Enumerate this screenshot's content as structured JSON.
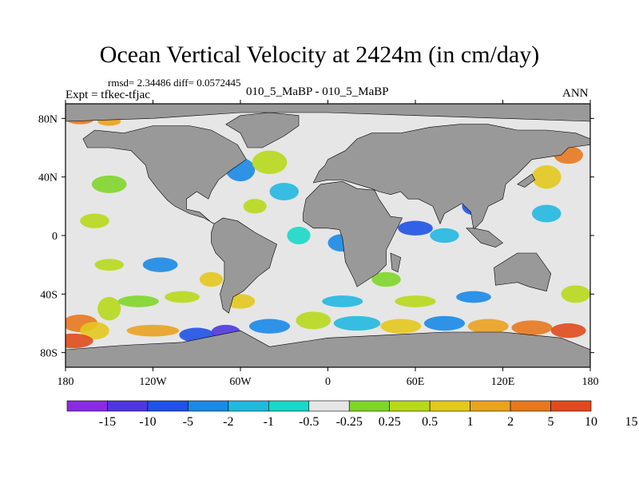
{
  "title": "Ocean Vertical Velocity at 2424m (in cm/day)",
  "stats_text": "rmsd= 2.34486 diff= 0.0572445",
  "expt_text": "Expt = tfkec-tfjac",
  "cases_text": "010_5_MaBP - 010_5_MaBP",
  "season": "ANN",
  "map": {
    "lon_range": [
      -180,
      180
    ],
    "lat_range": [
      -90,
      90
    ],
    "x_tick_labels": [
      {
        "lon": -180,
        "label": "180"
      },
      {
        "lon": -120,
        "label": "120W"
      },
      {
        "lon": -60,
        "label": "60W"
      },
      {
        "lon": 0,
        "label": "0"
      },
      {
        "lon": 60,
        "label": "60E"
      },
      {
        "lon": 120,
        "label": "120E"
      },
      {
        "lon": 180,
        "label": "180"
      }
    ],
    "y_tick_labels": [
      {
        "lat": 80,
        "label": "80N"
      },
      {
        "lat": 40,
        "label": "40N"
      },
      {
        "lat": 0,
        "label": "0"
      },
      {
        "lat": -40,
        "label": "40S"
      },
      {
        "lat": -80,
        "label": "80S"
      }
    ],
    "land_color": "#999999",
    "ocean_neutral_color": "#e6e6e6"
  },
  "colorbar": {
    "colors": [
      "#8a2be2",
      "#4f37df",
      "#1f52e6",
      "#1a8ae6",
      "#22b8e0",
      "#19d8c8",
      "#e6e6e6",
      "#7fd62a",
      "#b8d81c",
      "#e3c81e",
      "#eaa220",
      "#e87820",
      "#e04b1c"
    ],
    "labels": [
      "-15",
      "-10",
      "-5",
      "-2",
      "-1",
      "-0.5",
      "-0.25",
      "0.25",
      "0.5",
      "1",
      "2",
      "5",
      "10",
      "15"
    ]
  }
}
